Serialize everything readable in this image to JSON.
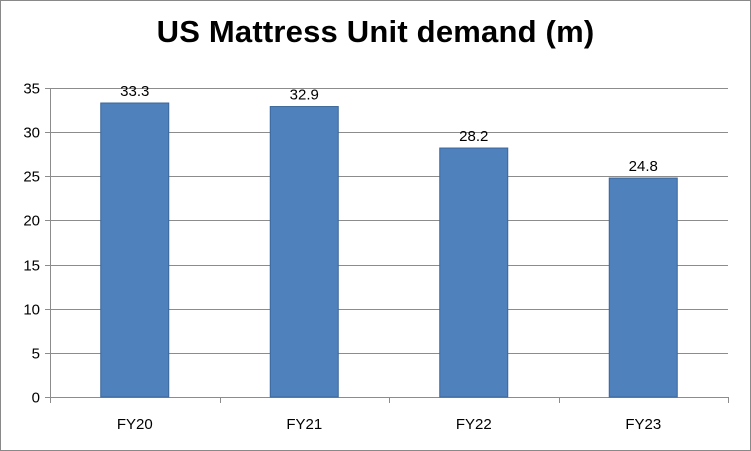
{
  "chart_data": {
    "type": "bar",
    "title": "US Mattress Unit demand (m)",
    "categories": [
      "FY20",
      "FY21",
      "FY22",
      "FY23"
    ],
    "values": [
      33.3,
      32.9,
      28.2,
      24.8
    ],
    "data_labels": [
      "33.3",
      "32.9",
      "28.2",
      "24.8"
    ],
    "yticks": [
      "0",
      "5",
      "10",
      "15",
      "20",
      "25",
      "30",
      "35"
    ],
    "ylim": [
      0,
      35
    ],
    "xlabel": "",
    "ylabel": "",
    "grid": true,
    "legend": "none",
    "colors": {
      "bar": "#4F81BD",
      "bar_border": "#3A6699",
      "grid": "#8C8C8C",
      "axis": "#8C8C8C"
    }
  }
}
